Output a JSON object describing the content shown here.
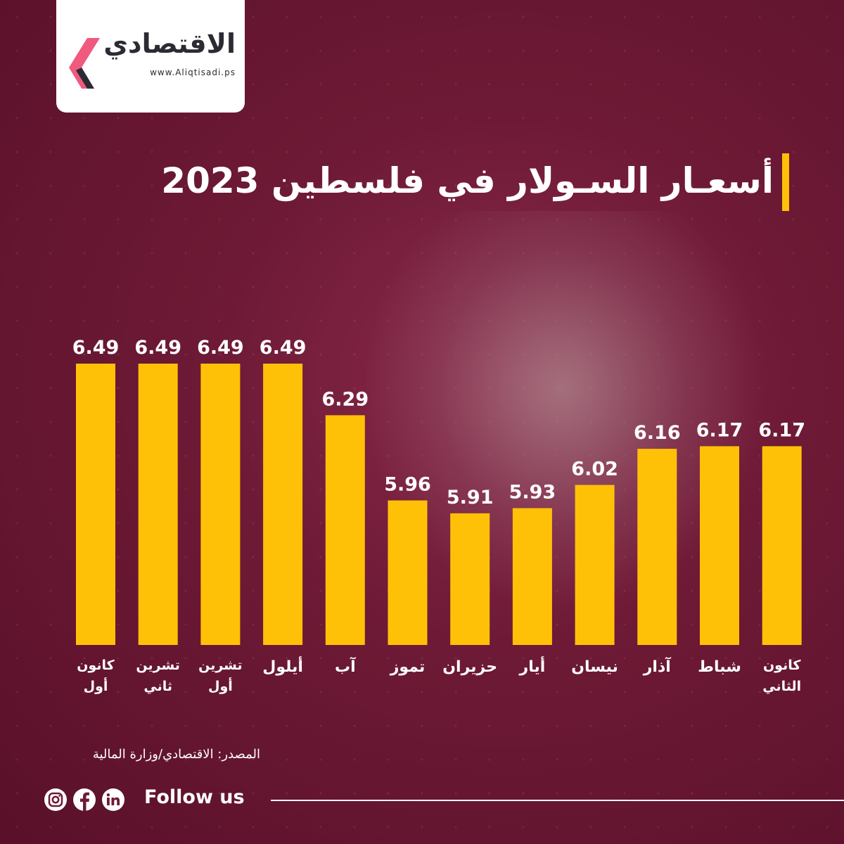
{
  "logo": {
    "name": "الاقتصادي",
    "url": "www.Aliqtisadi.ps",
    "colors": {
      "accent": "#f05a7e",
      "dark": "#2b2b33"
    }
  },
  "title": "أسعـار السـولار في فلسطين 2023",
  "source": "المصدر: الاقتصادي/وزارة المالية",
  "footer": {
    "follow": "Follow us",
    "icons": [
      "instagram-icon",
      "facebook-icon",
      "linkedin-icon"
    ]
  },
  "colors": {
    "bar": "#ffc107",
    "text": "#ffffff",
    "background": "#6e1a36"
  },
  "chart_data": {
    "type": "bar",
    "categories": [
      "كانون أول",
      "تشرين ثاني",
      "تشرين أول",
      "أيلول",
      "آب",
      "تموز",
      "حزيران",
      "أيار",
      "نيسان",
      "آذار",
      "شباط",
      "كانون الثاني"
    ],
    "category_lines": [
      [
        "كانون",
        "أول"
      ],
      [
        "تشرين",
        "ثاني"
      ],
      [
        "تشرين",
        "أول"
      ],
      [
        "أيلول"
      ],
      [
        "آب"
      ],
      [
        "تموز"
      ],
      [
        "حزيران"
      ],
      [
        "أيار"
      ],
      [
        "نيسان"
      ],
      [
        "آذار"
      ],
      [
        "شباط"
      ],
      [
        "كانون",
        "الثاني"
      ]
    ],
    "values": [
      6.49,
      6.49,
      6.49,
      6.49,
      6.29,
      5.96,
      5.91,
      5.93,
      6.02,
      6.16,
      6.17,
      6.17
    ],
    "value_labels": [
      "6.49",
      "6.49",
      "6.49",
      "6.49",
      "6.29",
      "5.96",
      "5.91",
      "5.93",
      "6.02",
      "6.16",
      "6.17",
      "6.17"
    ],
    "ylim": [
      5.4,
      6.49
    ],
    "grid": false,
    "legend": "none"
  }
}
